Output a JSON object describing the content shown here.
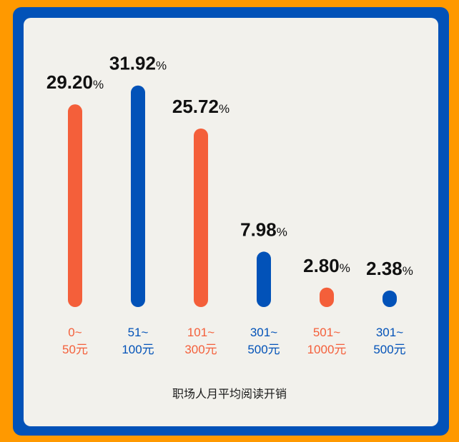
{
  "chart_data": {
    "type": "bar",
    "title": "职场人月平均阅读开销",
    "categories": [
      [
        "0~",
        "50元"
      ],
      [
        "51~",
        "100元"
      ],
      [
        "101~",
        "300元"
      ],
      [
        "301~",
        "500元"
      ],
      [
        "501~",
        "1000元"
      ],
      [
        "301~",
        "500元"
      ]
    ],
    "values": [
      29.2,
      31.92,
      25.72,
      7.98,
      2.8,
      2.38
    ],
    "value_labels": [
      "29.20",
      "31.92",
      "25.72",
      "7.98",
      "2.80",
      "2.38"
    ],
    "unit": "%",
    "bar_colors": [
      "#F45F3A",
      "#0252B8",
      "#F45F3A",
      "#0252B8",
      "#F45F3A",
      "#0252B8"
    ],
    "grid": false,
    "legend": "none"
  },
  "colors": {
    "background": "#FF9900",
    "frame": "#0252B8",
    "panel": "#F2F1EC"
  }
}
